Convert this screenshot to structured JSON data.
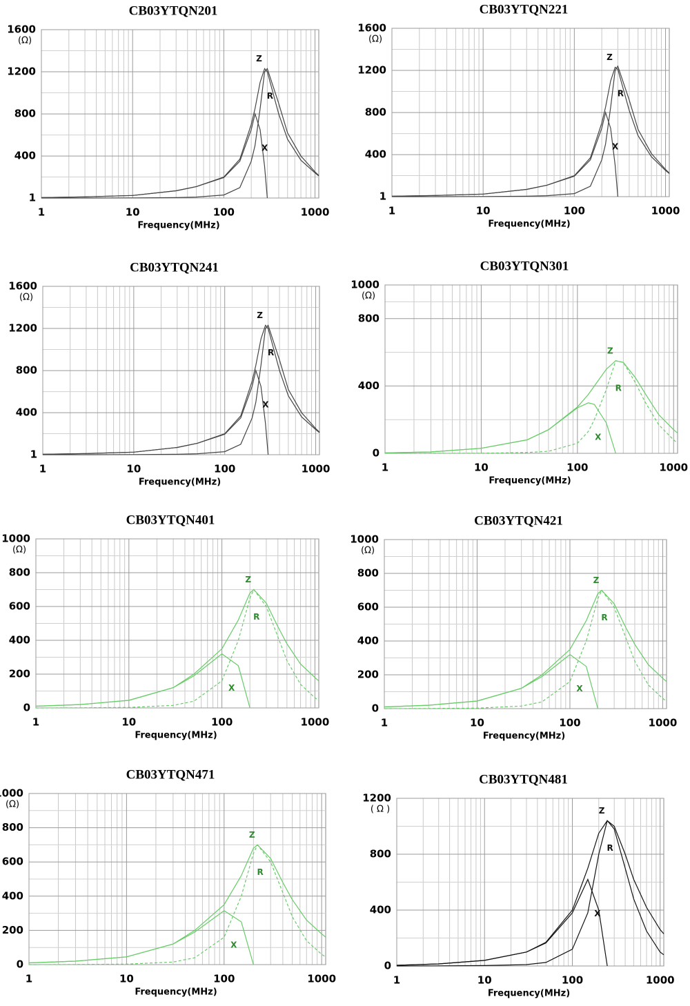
{
  "chart_data": [
    {
      "type": "line",
      "title": "CB03YTQN201",
      "y_unit": "(Ω)",
      "x_label": "Frequency(MHz)",
      "log_x": true,
      "grid": true,
      "xlim": [
        1,
        1100
      ],
      "xticks": [
        1,
        10,
        100,
        1000
      ],
      "ylim": [
        1,
        1600
      ],
      "yticks": [
        1,
        400,
        800,
        1200,
        1600
      ],
      "x": [
        1,
        3,
        10,
        30,
        50,
        100,
        150,
        200,
        220,
        250,
        280,
        300,
        400,
        500,
        700,
        1000,
        1100
      ],
      "series": [
        {
          "name": "Z",
          "color": "#444444",
          "dashed": false,
          "values": [
            5,
            12,
            25,
            70,
            110,
            200,
            370,
            700,
            850,
            1100,
            1230,
            1200,
            800,
            560,
            360,
            240,
            210
          ]
        },
        {
          "name": "R",
          "color": "#444444",
          "dashed": false,
          "values": [
            1,
            1,
            2,
            5,
            10,
            30,
            100,
            350,
            500,
            850,
            1200,
            1230,
            900,
            620,
            400,
            250,
            215
          ]
        },
        {
          "name": "X",
          "color": "#444444",
          "dashed": false,
          "values": [
            5,
            12,
            25,
            70,
            110,
            195,
            350,
            650,
            800,
            650,
            300,
            1,
            null,
            null,
            null,
            null,
            null
          ]
        }
      ]
    },
    {
      "type": "line",
      "title": "CB03YTQN221",
      "y_unit": "(Ω)",
      "x_label": "Frequency(MHz)",
      "log_x": true,
      "grid": true,
      "xlim": [
        1,
        1100
      ],
      "xticks": [
        1,
        10,
        100,
        1000
      ],
      "ylim": [
        1,
        1600
      ],
      "yticks": [
        1,
        400,
        800,
        1200,
        1600
      ],
      "x": [
        1,
        3,
        10,
        30,
        50,
        100,
        150,
        200,
        220,
        250,
        280,
        300,
        400,
        500,
        700,
        1000,
        1100
      ],
      "series": [
        {
          "name": "Z",
          "color": "#444444",
          "dashed": false,
          "values": [
            5,
            12,
            25,
            70,
            110,
            200,
            370,
            700,
            850,
            1100,
            1230,
            1210,
            820,
            580,
            380,
            250,
            220
          ]
        },
        {
          "name": "R",
          "color": "#444444",
          "dashed": false,
          "values": [
            1,
            1,
            2,
            5,
            10,
            30,
            100,
            350,
            500,
            850,
            1200,
            1240,
            920,
            640,
            410,
            260,
            225
          ]
        },
        {
          "name": "X",
          "color": "#444444",
          "dashed": false,
          "values": [
            5,
            12,
            25,
            70,
            110,
            195,
            350,
            650,
            800,
            650,
            300,
            1,
            null,
            null,
            null,
            null,
            null
          ]
        }
      ]
    },
    {
      "type": "line",
      "title": "CB03YTQN241",
      "y_unit": "(Ω)",
      "x_label": "Frequency(MHz)",
      "log_x": true,
      "grid": true,
      "xlim": [
        1,
        1100
      ],
      "xticks": [
        1,
        10,
        100,
        1000
      ],
      "ylim": [
        1,
        1600
      ],
      "yticks": [
        1,
        400,
        800,
        1200,
        1600
      ],
      "x": [
        1,
        3,
        10,
        30,
        50,
        100,
        150,
        200,
        220,
        250,
        280,
        300,
        400,
        500,
        700,
        1000,
        1100
      ],
      "series": [
        {
          "name": "Z",
          "color": "#444444",
          "dashed": false,
          "values": [
            5,
            12,
            25,
            70,
            110,
            200,
            370,
            700,
            850,
            1100,
            1230,
            1200,
            800,
            560,
            360,
            240,
            210
          ]
        },
        {
          "name": "R",
          "color": "#444444",
          "dashed": false,
          "values": [
            1,
            1,
            2,
            5,
            10,
            30,
            100,
            350,
            500,
            850,
            1200,
            1230,
            900,
            620,
            400,
            250,
            215
          ]
        },
        {
          "name": "X",
          "color": "#444444",
          "dashed": false,
          "values": [
            5,
            12,
            25,
            70,
            110,
            195,
            350,
            650,
            800,
            650,
            300,
            1,
            null,
            null,
            null,
            null,
            null
          ]
        }
      ]
    },
    {
      "type": "line",
      "title": "CB03YTQN301",
      "y_unit": "(Ω)",
      "x_label": "Frequency(MHz)",
      "log_x": true,
      "grid": true,
      "xlim": [
        1,
        1100
      ],
      "xticks": [
        1,
        10,
        100,
        1000
      ],
      "ylim": [
        0,
        1000
      ],
      "yticks": [
        0,
        400,
        800,
        1000
      ],
      "x": [
        1,
        3,
        10,
        30,
        50,
        100,
        130,
        150,
        200,
        250,
        300,
        400,
        500,
        700,
        1000,
        1100
      ],
      "series": [
        {
          "name": "Z",
          "color": "#66cc66",
          "dashed": false,
          "values": [
            3,
            8,
            30,
            80,
            140,
            275,
            350,
            400,
            500,
            550,
            540,
            450,
            360,
            230,
            140,
            120
          ]
        },
        {
          "name": "R",
          "color": "#66cc66",
          "dashed": true,
          "values": [
            0,
            0,
            1,
            5,
            12,
            60,
            130,
            200,
            380,
            550,
            540,
            420,
            310,
            170,
            80,
            60
          ]
        },
        {
          "name": "X",
          "color": "#66cc66",
          "dashed": false,
          "values": [
            3,
            8,
            30,
            80,
            140,
            270,
            300,
            290,
            180,
            0,
            null,
            null,
            null,
            null,
            null,
            null
          ]
        }
      ]
    },
    {
      "type": "line",
      "title": "CB03YTQN401",
      "y_unit": "(Ω)",
      "x_label": "Frequency(MHz)",
      "log_x": true,
      "grid": true,
      "xlim": [
        1,
        1100
      ],
      "xticks": [
        1,
        10,
        100,
        1000
      ],
      "ylim": [
        0,
        1000
      ],
      "yticks": [
        0,
        200,
        400,
        600,
        800,
        1000
      ],
      "x": [
        1,
        3,
        10,
        30,
        50,
        100,
        150,
        200,
        220,
        300,
        400,
        500,
        700,
        1000,
        1100
      ],
      "series": [
        {
          "name": "Z",
          "color": "#66cc66",
          "dashed": false,
          "values": [
            10,
            20,
            45,
            120,
            200,
            350,
            520,
            680,
            700,
            620,
            480,
            380,
            260,
            180,
            160
          ]
        },
        {
          "name": "R",
          "color": "#66cc66",
          "dashed": true,
          "values": [
            0,
            1,
            3,
            15,
            40,
            160,
            400,
            650,
            700,
            600,
            420,
            280,
            140,
            60,
            45
          ]
        },
        {
          "name": "X",
          "color": "#66cc66",
          "dashed": false,
          "values": [
            10,
            20,
            45,
            120,
            190,
            320,
            250,
            0,
            null,
            null,
            null,
            null,
            null,
            null,
            null
          ]
        }
      ]
    },
    {
      "type": "line",
      "title": "CB03YTQN421",
      "y_unit": "(Ω)",
      "x_label": "Frequency(MHz)",
      "log_x": true,
      "grid": true,
      "xlim": [
        1,
        1100
      ],
      "xticks": [
        1,
        10,
        100,
        1000
      ],
      "ylim": [
        0,
        1000
      ],
      "yticks": [
        0,
        200,
        400,
        600,
        800,
        1000
      ],
      "x": [
        1,
        3,
        10,
        30,
        50,
        100,
        150,
        200,
        220,
        300,
        400,
        500,
        700,
        1000,
        1100
      ],
      "series": [
        {
          "name": "Z",
          "color": "#66cc66",
          "dashed": false,
          "values": [
            10,
            20,
            45,
            120,
            200,
            350,
            520,
            680,
            700,
            620,
            480,
            380,
            260,
            180,
            160
          ]
        },
        {
          "name": "R",
          "color": "#66cc66",
          "dashed": true,
          "values": [
            0,
            1,
            3,
            15,
            40,
            160,
            400,
            650,
            700,
            600,
            420,
            280,
            140,
            60,
            45
          ]
        },
        {
          "name": "X",
          "color": "#66cc66",
          "dashed": false,
          "values": [
            10,
            20,
            45,
            120,
            190,
            320,
            250,
            0,
            null,
            null,
            null,
            null,
            null,
            null,
            null
          ]
        }
      ]
    },
    {
      "type": "line",
      "title": "CB03YTQN471",
      "y_unit": "(Ω)",
      "x_label": "Frequency(MHz)",
      "log_x": true,
      "grid": true,
      "xlim": [
        1,
        1100
      ],
      "xticks": [
        1,
        10,
        100,
        1000
      ],
      "ylim": [
        0,
        1000
      ],
      "yticks": [
        0,
        200,
        400,
        600,
        800,
        1000
      ],
      "x": [
        1,
        3,
        10,
        30,
        50,
        100,
        150,
        200,
        220,
        300,
        400,
        500,
        700,
        1000,
        1100
      ],
      "series": [
        {
          "name": "Z",
          "color": "#66cc66",
          "dashed": false,
          "values": [
            10,
            20,
            45,
            120,
            200,
            350,
            520,
            680,
            700,
            620,
            480,
            380,
            260,
            180,
            160
          ]
        },
        {
          "name": "R",
          "color": "#66cc66",
          "dashed": true,
          "values": [
            0,
            1,
            3,
            15,
            40,
            160,
            400,
            650,
            700,
            600,
            420,
            280,
            140,
            60,
            45
          ]
        },
        {
          "name": "X",
          "color": "#66cc66",
          "dashed": false,
          "values": [
            10,
            20,
            45,
            120,
            190,
            315,
            250,
            0,
            null,
            null,
            null,
            null,
            null,
            null,
            null
          ]
        }
      ]
    },
    {
      "type": "line",
      "title": "CB03YTQN481",
      "y_unit": "( Ω )",
      "x_label": "Frequency(MHz)",
      "log_x": true,
      "grid": true,
      "xlim": [
        1,
        1100
      ],
      "xticks": [
        1,
        10,
        100,
        1000
      ],
      "ylim": [
        0,
        1200
      ],
      "yticks": [
        0,
        400,
        800,
        1200
      ],
      "x": [
        1,
        3,
        10,
        30,
        50,
        100,
        150,
        200,
        250,
        300,
        400,
        500,
        700,
        1000,
        1100
      ],
      "series": [
        {
          "name": "Z",
          "color": "#111111",
          "dashed": false,
          "values": [
            5,
            15,
            40,
            100,
            170,
            400,
            700,
            950,
            1040,
            1000,
            800,
            620,
            420,
            260,
            230
          ]
        },
        {
          "name": "R",
          "color": "#111111",
          "dashed": false,
          "values": [
            0,
            1,
            3,
            10,
            25,
            120,
            380,
            800,
            1040,
            980,
            700,
            480,
            250,
            100,
            80
          ]
        },
        {
          "name": "X",
          "color": "#111111",
          "dashed": false,
          "values": [
            5,
            15,
            40,
            100,
            165,
            380,
            620,
            400,
            0,
            null,
            null,
            null,
            null,
            null,
            null
          ]
        }
      ]
    }
  ]
}
